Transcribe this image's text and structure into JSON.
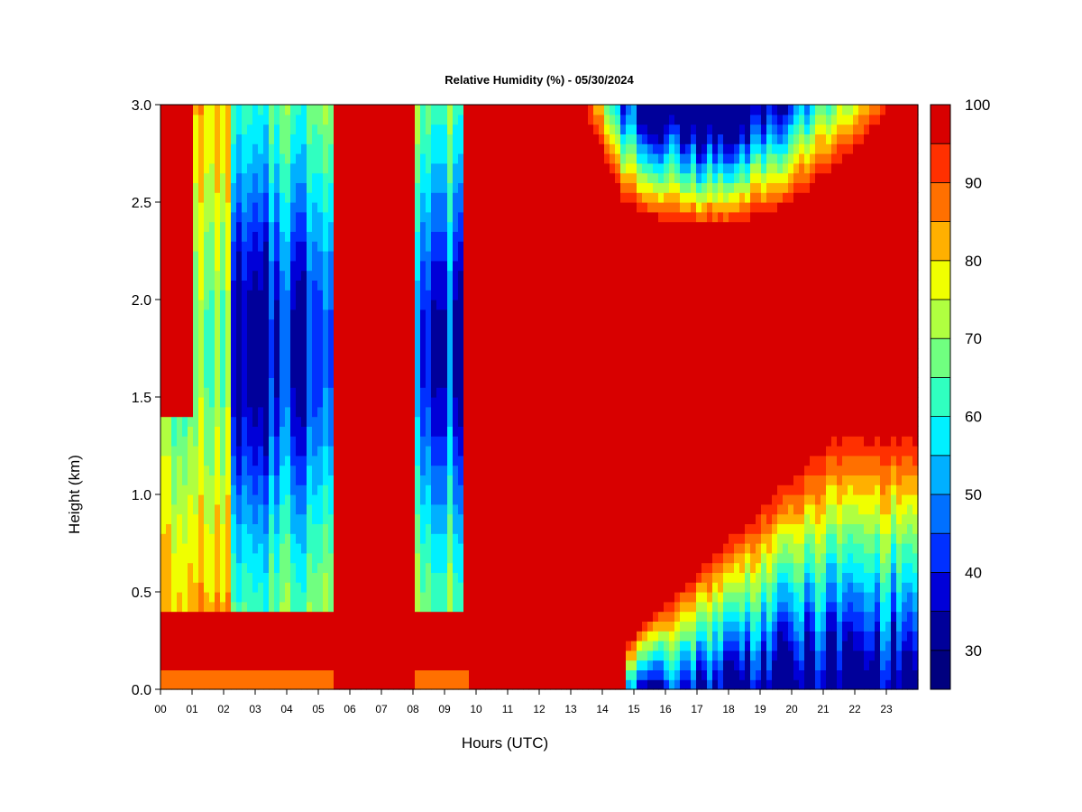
{
  "chart_data": {
    "type": "heatmap",
    "title": "Relative Humidity (%) - 05/30/2024",
    "xlabel": "Hours (UTC)",
    "ylabel": "Height (km)",
    "xlim": [
      0,
      24
    ],
    "ylim": [
      0,
      3.0
    ],
    "x_tick_labels": [
      "00",
      "01",
      "02",
      "03",
      "04",
      "05",
      "06",
      "07",
      "08",
      "09",
      "10",
      "11",
      "12",
      "13",
      "14",
      "15",
      "16",
      "17",
      "18",
      "19",
      "20",
      "21",
      "22",
      "23"
    ],
    "y_tick_values": [
      0.0,
      0.5,
      1.0,
      1.5,
      2.0,
      2.5,
      3.0
    ],
    "y_tick_labels": [
      "0.0",
      "0.5",
      "1.0",
      "1.5",
      "2.0",
      "2.5",
      "3.0"
    ],
    "colorbar": {
      "levels": [
        25,
        30,
        35,
        40,
        45,
        50,
        55,
        60,
        65,
        70,
        75,
        80,
        85,
        90,
        95,
        100
      ],
      "labels": [
        "30",
        "40",
        "50",
        "60",
        "70",
        "80",
        "90",
        "100"
      ],
      "label_values": [
        30,
        40,
        50,
        60,
        70,
        80,
        90,
        100
      ],
      "colors": [
        "#00007f",
        "#00009a",
        "#0000d8",
        "#0030ff",
        "#0070ff",
        "#00b0ff",
        "#00f0ff",
        "#30ffc0",
        "#70ff80",
        "#b0ff40",
        "#f0ff00",
        "#ffb000",
        "#ff7000",
        "#ff3000",
        "#d80000",
        "#7f0000"
      ]
    },
    "grid": false
  }
}
